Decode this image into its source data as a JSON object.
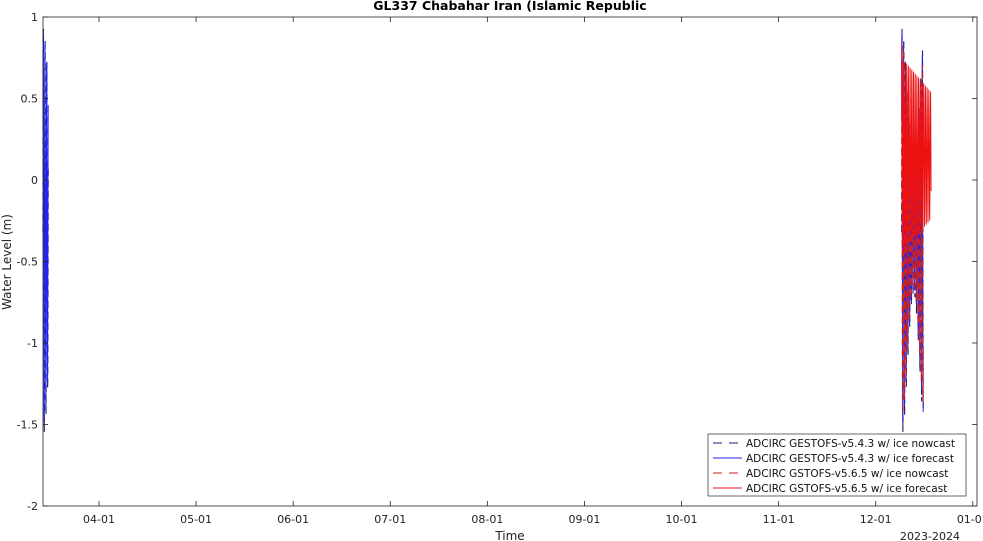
{
  "chart_data": {
    "type": "line",
    "title": "GL337 Chabahar Iran (Islamic Republic",
    "xlabel": "Time",
    "ylabel": "Water Level (m)",
    "x_tick_labels": [
      "04-01",
      "05-01",
      "06-01",
      "07-01",
      "08-01",
      "09-01",
      "10-01",
      "11-01",
      "12-01",
      "01-01"
    ],
    "x_secondary_label": "2023-2024",
    "x_range_days": [
      0,
      285
    ],
    "y_ticks": [
      1,
      0.5,
      0,
      -0.5,
      -1,
      -1.5,
      -2
    ],
    "ylim": [
      -2,
      1
    ],
    "grid": false,
    "legend_position": "bottom-right",
    "series": [
      {
        "name": "ADCIRC GESTOFS-v5.4.3 w/ ice nowcast",
        "color": "#1a1a7a",
        "style": "dashed",
        "segments": [
          {
            "x_start": 0.0,
            "x_end": 1.6,
            "amp": 1.25,
            "mean": -0.32,
            "period": 0.52
          },
          {
            "x_start": 262.0,
            "x_end": 268.6,
            "amp": 1.25,
            "mean": -0.32,
            "period": 0.52
          }
        ]
      },
      {
        "name": "ADCIRC GESTOFS-v5.4.3 w/ ice forecast",
        "color": "#2222ee",
        "style": "solid",
        "segments": [
          {
            "x_start": 0.0,
            "x_end": 1.6,
            "amp": 1.2,
            "mean": -0.3,
            "period": 0.52
          },
          {
            "x_start": 262.0,
            "x_end": 268.6,
            "amp": 1.2,
            "mean": -0.3,
            "period": 0.52
          }
        ]
      },
      {
        "name": "ADCIRC GSTOFS-v5.6.5 w/ ice nowcast",
        "color": "#cc2222",
        "style": "dashed",
        "segments": [
          {
            "x_start": 262.0,
            "x_end": 268.6,
            "amp": 1.15,
            "mean": -0.3,
            "period": 0.52
          }
        ]
      },
      {
        "name": "ADCIRC GSTOFS-v5.6.5 w/ ice forecast",
        "color": "#ee1111",
        "style": "solid",
        "segments": [
          {
            "x_start": 262.0,
            "x_end": 271.0,
            "amp": 0.6,
            "mean": 0.15,
            "period": 0.52,
            "amp_decay": true
          }
        ]
      }
    ]
  }
}
